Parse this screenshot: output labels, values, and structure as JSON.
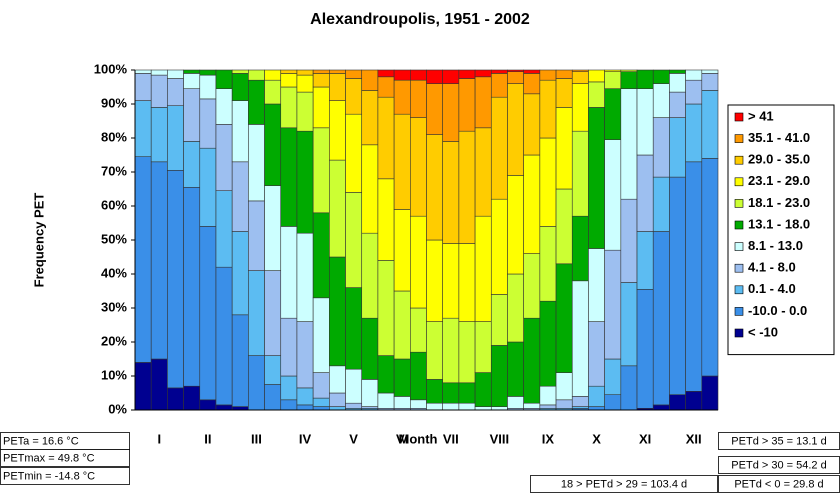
{
  "chart_data": {
    "type": "stacked_bar",
    "title": "Alexandroupolis, 1951 - 2002",
    "x_label": "Month",
    "y_label": "Frequency   PET",
    "categories": [
      null,
      "I",
      null,
      null,
      "II",
      null,
      null,
      "III",
      null,
      null,
      "IV",
      null,
      null,
      "V",
      null,
      null,
      "VI",
      null,
      null,
      "VII",
      null,
      null,
      "VIII",
      null,
      null,
      "IX",
      null,
      null,
      "X",
      null,
      null,
      "XI",
      null,
      null,
      "XII",
      null
    ],
    "ylim": [
      0,
      100
    ],
    "yticks": [
      {
        "value": 0,
        "label": "0%"
      },
      {
        "value": 10,
        "label": "10%"
      },
      {
        "value": 20,
        "label": "20%"
      },
      {
        "value": 30,
        "label": "30%"
      },
      {
        "value": 40,
        "label": "40%"
      },
      {
        "value": 50,
        "label": "50%"
      },
      {
        "value": 60,
        "label": "60%"
      },
      {
        "value": 70,
        "label": "70%"
      },
      {
        "value": 80,
        "label": "80%"
      },
      {
        "value": 90,
        "label": "90%"
      },
      {
        "value": 100,
        "label": "100%"
      }
    ],
    "legend_position": "right",
    "series": [
      {
        "name": "< -10",
        "color": "#000090",
        "values": [
          14,
          15,
          6.5,
          7,
          3,
          1.5,
          1,
          0,
          0,
          0,
          0,
          0,
          0,
          0,
          0,
          0,
          0,
          0,
          0,
          0,
          0,
          0,
          0,
          0,
          0,
          0,
          0,
          0,
          0,
          0,
          0,
          0.5,
          1.5,
          4.5,
          5.5,
          10
        ]
      },
      {
        "name": "-10.0 - 0.0",
        "color": "#3a8fe8",
        "values": [
          60.5,
          58,
          64,
          58.5,
          51,
          40.5,
          27,
          16,
          7.5,
          3,
          1.5,
          1,
          0,
          0,
          0,
          0,
          0,
          0,
          0,
          0,
          0,
          0,
          0,
          0,
          0,
          0,
          0,
          0.5,
          1,
          4.5,
          13,
          35,
          51,
          64,
          67.5,
          64
        ]
      },
      {
        "name": "0.1 - 4.0",
        "color": "#5cbcf2",
        "values": [
          16.5,
          16,
          19,
          13.5,
          23,
          22.5,
          24.5,
          25,
          8.5,
          7,
          5,
          2.5,
          1,
          0.5,
          0.5,
          0,
          0,
          0,
          0,
          0,
          0,
          0,
          0,
          0,
          0,
          0.5,
          0.5,
          0.5,
          6,
          10.5,
          24.5,
          17,
          16,
          17.5,
          17,
          20
        ]
      },
      {
        "name": "4.1 - 8.0",
        "color": "#9dbff0",
        "values": [
          8,
          9.5,
          8,
          15.5,
          14.5,
          19.5,
          20.5,
          20.5,
          25,
          17,
          19.5,
          7.5,
          4,
          1.5,
          0.5,
          0.5,
          0.5,
          0.5,
          0,
          0,
          0,
          0,
          0,
          0.5,
          0.5,
          1,
          2.5,
          3,
          19,
          32,
          24.5,
          22.5,
          17.5,
          7.5,
          7,
          5
        ]
      },
      {
        "name": "8.1 - 13.0",
        "color": "#ccffff",
        "values": [
          1,
          1.5,
          2.5,
          4.5,
          7,
          10.5,
          18,
          22.5,
          25,
          27,
          26,
          22,
          8,
          10,
          8,
          4.5,
          3.5,
          2.5,
          2,
          2,
          2,
          1,
          1,
          3.5,
          1.5,
          5.5,
          8,
          34,
          21.5,
          32.5,
          32.5,
          19.5,
          10,
          5.5,
          3,
          1
        ]
      },
      {
        "name": "13.1 - 18.0",
        "color": "#00aa00",
        "values": [
          0,
          0,
          0,
          1,
          1.5,
          5.5,
          8,
          13,
          24,
          29,
          30,
          25,
          32,
          24,
          18,
          11,
          11,
          14,
          7,
          6,
          6,
          10,
          18,
          16,
          25,
          25,
          32,
          19,
          41.5,
          15,
          5,
          5.5,
          4,
          1,
          0,
          0
        ]
      },
      {
        "name": "18.1 - 23.0",
        "color": "#ccff33",
        "values": [
          0,
          0,
          0,
          0,
          0,
          0,
          1,
          3,
          7,
          12,
          11.5,
          25,
          28.5,
          28,
          25,
          28,
          20,
          13,
          17,
          19,
          18,
          15,
          15,
          20,
          19,
          22,
          22,
          25,
          7.5,
          5,
          0.5,
          0,
          0,
          0,
          0,
          0
        ]
      },
      {
        "name": "23.1 - 29.0",
        "color": "#ffff00",
        "values": [
          0,
          0,
          0,
          0,
          0,
          0,
          0,
          0,
          3,
          4,
          5,
          12,
          17.5,
          23,
          26,
          24,
          24,
          27,
          24,
          22,
          23,
          31,
          28,
          29,
          29,
          26,
          24,
          14,
          3.5,
          0.5,
          0,
          0,
          0,
          0,
          0,
          0
        ]
      },
      {
        "name": "29.0 - 35.0",
        "color": "#ffcc00",
        "values": [
          0,
          0,
          0,
          0,
          0,
          0,
          0,
          0,
          0,
          1,
          1.5,
          4,
          8,
          10.5,
          16,
          24,
          28,
          29,
          31,
          30,
          33,
          26,
          30,
          27,
          18,
          17,
          8.5,
          3.5,
          0,
          0,
          0,
          0,
          0,
          0,
          0,
          0
        ]
      },
      {
        "name": "35.1 - 41.0",
        "color": "#ff9900",
        "values": [
          0,
          0,
          0,
          0,
          0,
          0,
          0,
          0,
          0,
          0,
          0,
          1,
          1,
          2.5,
          6,
          6,
          10,
          11,
          15,
          17,
          15.5,
          15,
          7,
          3.5,
          6,
          3,
          2.5,
          0.5,
          0,
          0,
          0,
          0,
          0,
          0,
          0,
          0
        ]
      },
      {
        "name": "> 41",
        "color": "#ff0000",
        "values": [
          0,
          0,
          0,
          0,
          0,
          0,
          0,
          0,
          0,
          0,
          0,
          0,
          0,
          0,
          0,
          2,
          3,
          3,
          4,
          4,
          2.5,
          2,
          1,
          0.5,
          1,
          0,
          0,
          0,
          0,
          0,
          0,
          0,
          0,
          0,
          0,
          0
        ]
      }
    ],
    "annotations": [
      "PETa = 16.6 °C",
      "PETmax = 49.8 °C",
      "PETmin = -14.8 °C",
      "PETd > 35 = 13.1 d",
      "PETd > 30 = 54.2 d",
      "18 > PETd > 29 = 103.4 d",
      "PETd < 0 = 29.8 d"
    ]
  }
}
